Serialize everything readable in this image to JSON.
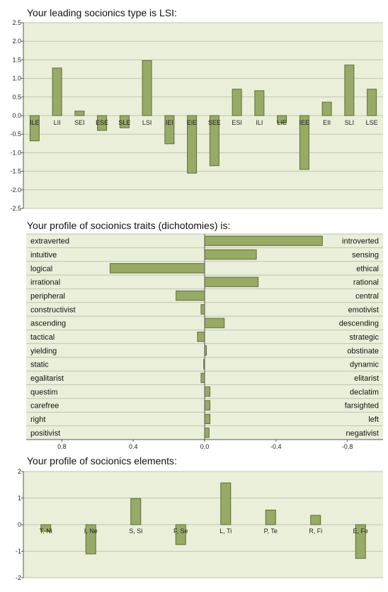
{
  "charts": [
    {
      "title": "Your leading socionics type is LSI:",
      "chart_data": {
        "type": "bar",
        "categories": [
          "ILE",
          "LII",
          "SEI",
          "ESE",
          "SLE",
          "LSI",
          "IEI",
          "EIE",
          "SEE",
          "ESI",
          "ILI",
          "LIE",
          "IEE",
          "EII",
          "SLI",
          "LSE"
        ],
        "values": [
          -0.68,
          1.28,
          0.12,
          -0.4,
          -0.33,
          1.48,
          -0.76,
          -1.55,
          -1.35,
          0.71,
          0.67,
          -0.2,
          -1.45,
          0.36,
          1.36,
          0.71
        ],
        "ylim": [
          -2.5,
          2.5
        ],
        "yticks": [
          "2.5",
          "2.0",
          "1.5",
          "1.0",
          "0.5",
          "0.0",
          "-0.5",
          "-1.0",
          "-1.5",
          "-2.0",
          "-2.5"
        ],
        "ytick_values": [
          2.5,
          2.0,
          1.5,
          1.0,
          0.5,
          0.0,
          -0.5,
          -1.0,
          -1.5,
          -2.0,
          -2.5
        ],
        "grid": true
      }
    },
    {
      "title": "Your profile of socionics traits (dichotomies) is:",
      "chart_data": {
        "type": "bar",
        "orientation": "horizontal",
        "left_labels": [
          "extraverted",
          "intuitive",
          "logical",
          "irrational",
          "peripheral",
          "constructivist",
          "ascending",
          "tactical",
          "yielding",
          "static",
          "egalitarist",
          "questim",
          "carefree",
          "right",
          "positivist"
        ],
        "right_labels": [
          "introverted",
          "sensing",
          "ethical",
          "rational",
          "central",
          "emotivist",
          "descending",
          "strategic",
          "obstinate",
          "dynamic",
          "elitarist",
          "declatim",
          "farsighted",
          "left",
          "negativist"
        ],
        "values": [
          -0.66,
          -0.29,
          0.53,
          -0.3,
          0.16,
          0.02,
          -0.11,
          0.04,
          -0.01,
          0.005,
          0.02,
          -0.03,
          -0.03,
          -0.03,
          -0.025
        ],
        "xlim": [
          1.0,
          -1.0
        ],
        "xticks": [
          "0.8",
          "0.4",
          "0.0",
          "-0.4",
          "-0.8"
        ],
        "xtick_values": [
          0.8,
          0.4,
          0.0,
          -0.4,
          -0.8
        ]
      }
    },
    {
      "title": "Your profile of socionics elements:",
      "chart_data": {
        "type": "bar",
        "categories": [
          "T, Ni",
          "I, Ne",
          "S, Si",
          "F, Se",
          "L, Ti",
          "P, Te",
          "R, Fi",
          "E, Fe"
        ],
        "values": [
          -0.25,
          -1.1,
          0.98,
          -0.75,
          1.57,
          0.55,
          0.35,
          -1.27
        ],
        "ylim": [
          -2,
          2
        ],
        "yticks": [
          "2",
          "1",
          "0",
          "-1",
          "-2"
        ],
        "ytick_values": [
          2,
          1,
          0,
          -1,
          -2
        ],
        "grid": true
      }
    }
  ],
  "colors": {
    "plot_bg": "#eaefda",
    "bar_fill": "#97aa66",
    "bar_stroke": "#5c6f35",
    "grid": "#bfc5b0",
    "axis": "#555555"
  }
}
